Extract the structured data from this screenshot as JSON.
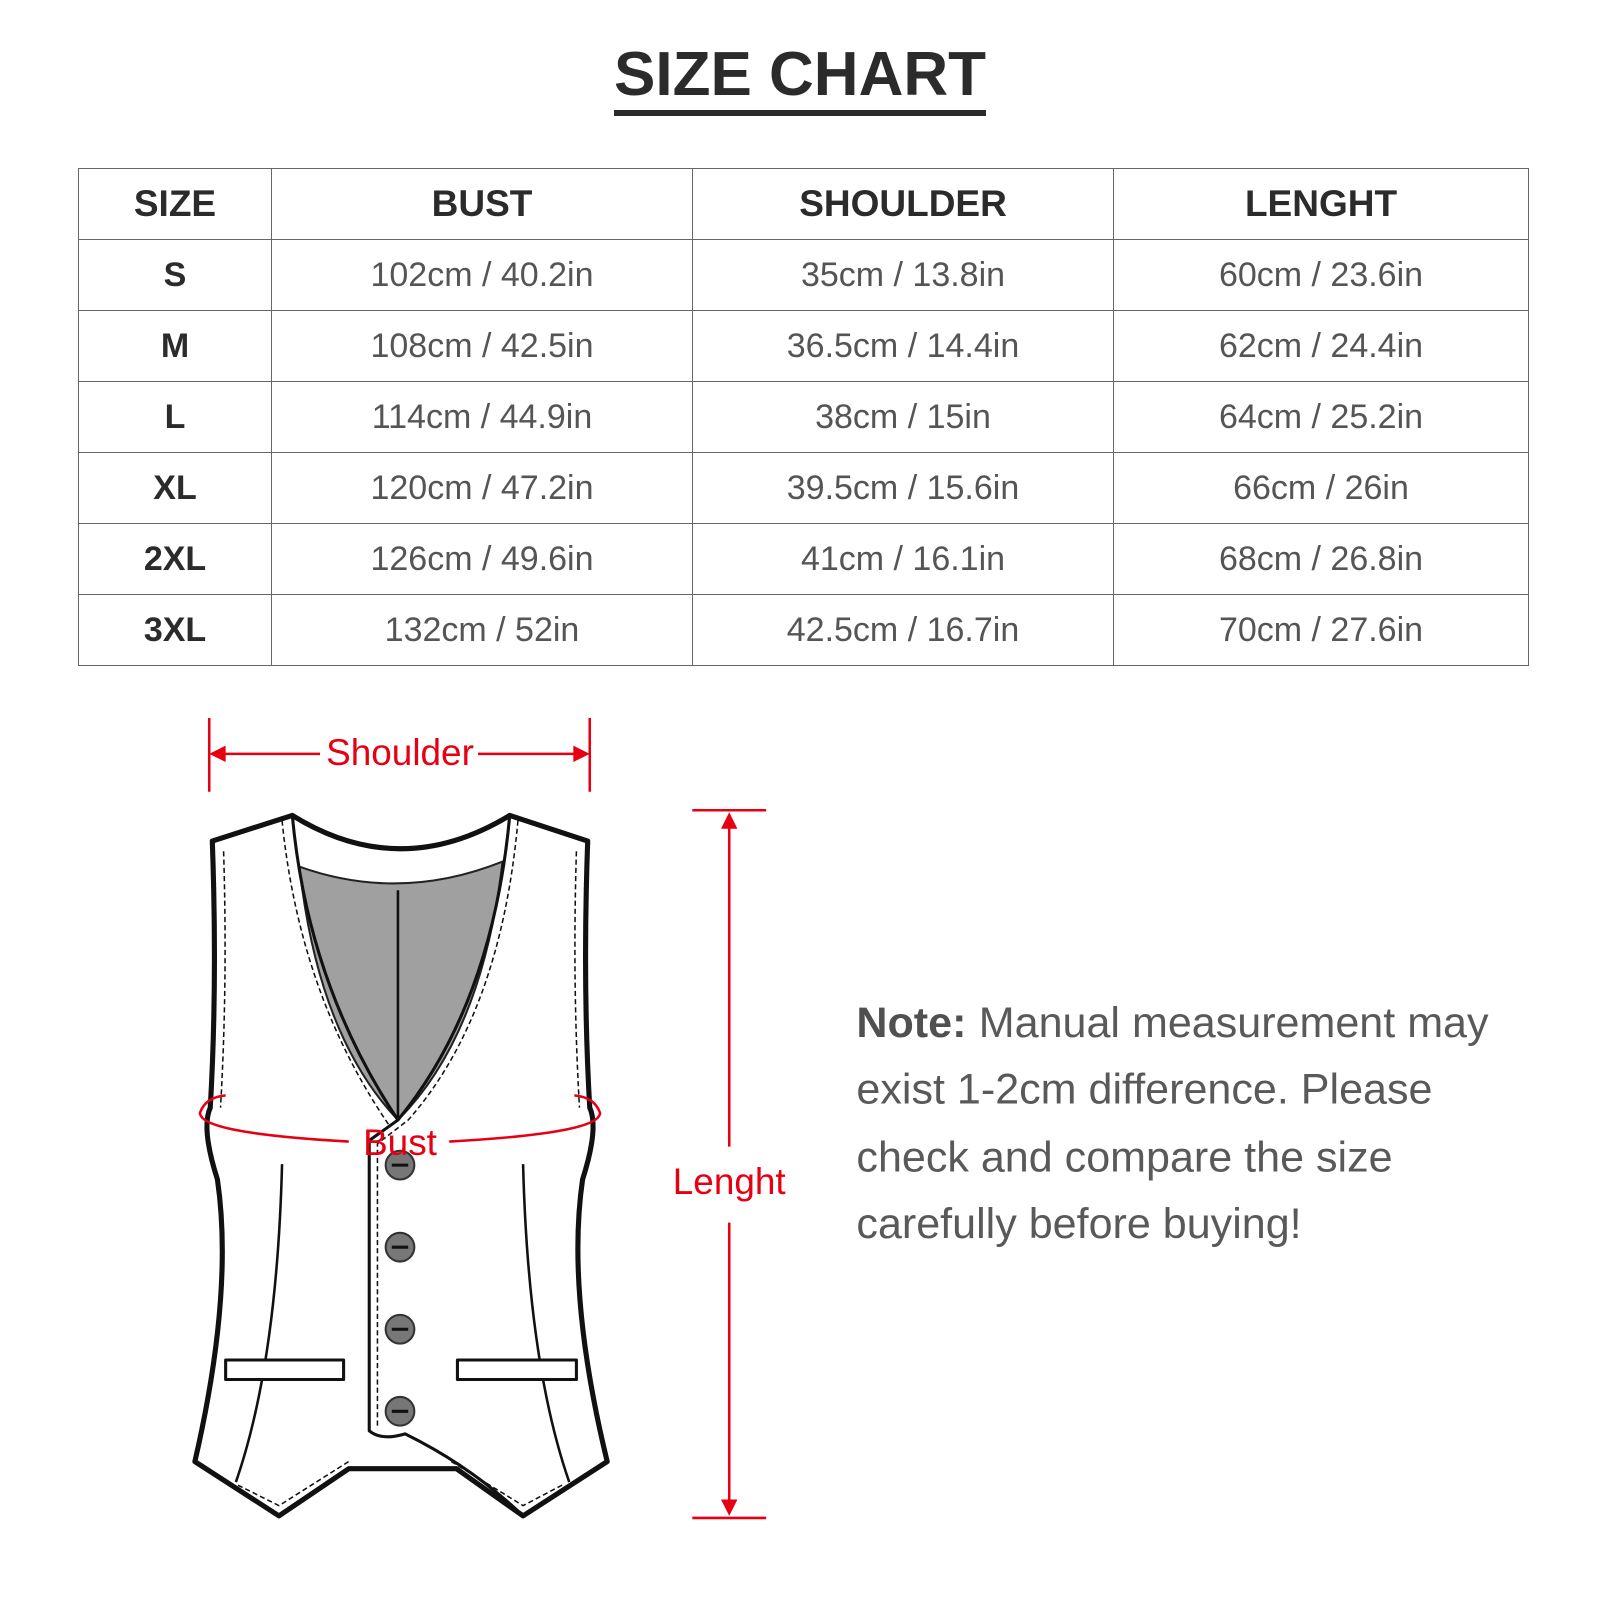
{
  "title": "SIZE CHART",
  "table": {
    "headers": [
      "SIZE",
      "BUST",
      "SHOULDER",
      "LENGHT"
    ],
    "rows": [
      [
        "S",
        "102cm / 40.2in",
        "35cm / 13.8in",
        "60cm / 23.6in"
      ],
      [
        "M",
        "108cm / 42.5in",
        "36.5cm / 14.4in",
        "62cm / 24.4in"
      ],
      [
        "L",
        "114cm / 44.9in",
        "38cm / 15in",
        "64cm / 25.2in"
      ],
      [
        "XL",
        "120cm / 47.2in",
        "39.5cm / 15.6in",
        "66cm / 26in"
      ],
      [
        "2XL",
        "126cm / 49.6in",
        "41cm / 16.1in",
        "68cm / 26.8in"
      ],
      [
        "3XL",
        "132cm / 52in",
        "42.5cm / 16.7in",
        "70cm / 27.6in"
      ]
    ]
  },
  "diagram": {
    "shoulder_label": "Shoulder",
    "bust_label": "Bust",
    "length_label": "Lenght",
    "measure_color": "#e60012"
  },
  "note": {
    "label": "Note:",
    "line1": "Manual measurement may",
    "line2": "exist 1-2cm difference. Please",
    "line3": "check and compare the size",
    "line4": "carefully before buying!"
  }
}
